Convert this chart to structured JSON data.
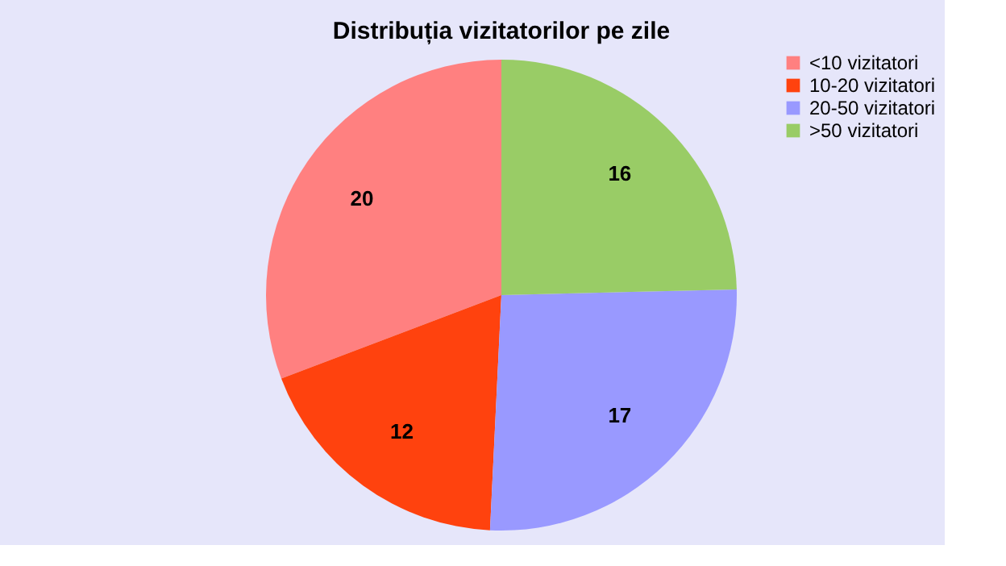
{
  "chart_data": {
    "type": "pie",
    "title": "Distribuția vizitatorilor pe zile",
    "categories": [
      "<10 vizitatori",
      "10-20 vizitatori",
      "20-50 vizitatori",
      ">50 vizitatori"
    ],
    "values": [
      20,
      12,
      17,
      16
    ],
    "colors": [
      "#ff8080",
      "#ff420e",
      "#9999ff",
      "#99cc66"
    ],
    "data_labels": true,
    "legend": "right"
  }
}
